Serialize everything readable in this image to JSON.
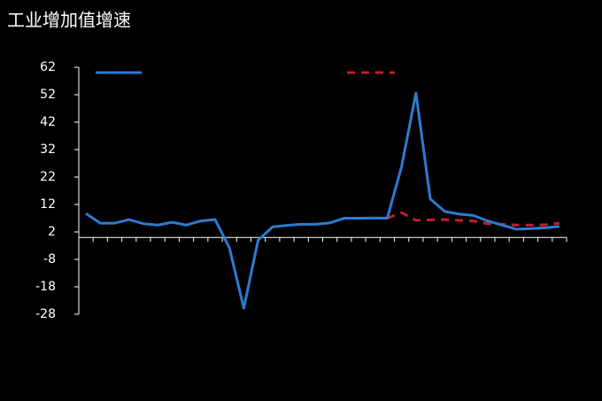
{
  "chart_data": {
    "type": "line",
    "title": "工业增加值增速",
    "categories": [
      null,
      null,
      null,
      null,
      null,
      null,
      null,
      null,
      null,
      null,
      null,
      null,
      null,
      null,
      null,
      null,
      null,
      null,
      null,
      null,
      null,
      null,
      null,
      null,
      null,
      null,
      null,
      null,
      null,
      null,
      null,
      null,
      null,
      null
    ],
    "series": [
      {
        "color": "#2e7bd0",
        "dash": false,
        "values": [
          8.7,
          5.2,
          5.2,
          6.5,
          5,
          4.5,
          5.5,
          4.5,
          6,
          6.5,
          -3.8,
          -25.8,
          -1,
          3.8,
          4.4,
          4.8,
          4.8,
          5.3,
          7,
          7,
          7.1,
          7,
          25.8,
          52.6,
          14,
          9.5,
          8.5,
          8,
          6,
          4.5,
          3,
          3.2,
          3.5,
          4
        ]
      },
      {
        "color": "#c0202a",
        "dash": true,
        "values": [
          null,
          null,
          null,
          null,
          null,
          null,
          null,
          null,
          null,
          null,
          null,
          null,
          null,
          null,
          null,
          null,
          null,
          null,
          null,
          null,
          null,
          7,
          9,
          6.2,
          6.4,
          6.5,
          6.2,
          6,
          5,
          4.8,
          4.5,
          4.5,
          4.6,
          5.2
        ]
      }
    ],
    "ylim": [
      -28,
      62
    ],
    "yticks": [
      62,
      52,
      42,
      32,
      22,
      12,
      2,
      -8,
      -18,
      -28
    ]
  }
}
